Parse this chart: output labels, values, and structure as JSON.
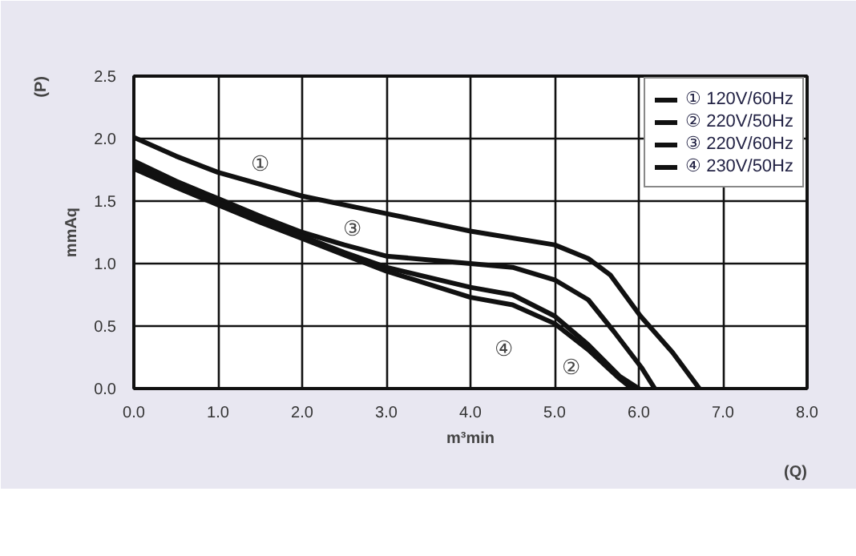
{
  "chart_data": {
    "type": "line",
    "xlabel": "m³min",
    "ylabel": "mmAq",
    "xlim": [
      0,
      8
    ],
    "ylim": [
      0,
      2.5
    ],
    "xticks": [
      {
        "value": 0,
        "label": "0.0"
      },
      {
        "value": 1,
        "label": "1.0"
      },
      {
        "value": 2,
        "label": "2.0"
      },
      {
        "value": 3,
        "label": "3.0"
      },
      {
        "value": 4,
        "label": "4.0"
      },
      {
        "value": 5,
        "label": "5.0"
      },
      {
        "value": 6,
        "label": "6.0"
      },
      {
        "value": 7,
        "label": "7.0"
      },
      {
        "value": 8,
        "label": "8.0"
      }
    ],
    "yticks": [
      {
        "value": 0,
        "label": "0.0"
      },
      {
        "value": 0.5,
        "label": "0.5"
      },
      {
        "value": 1,
        "label": "1.0"
      },
      {
        "value": 1.5,
        "label": "1.5"
      },
      {
        "value": 2,
        "label": "2.0"
      },
      {
        "value": 2.5,
        "label": "2.5"
      }
    ],
    "grid": true,
    "legend": "top right",
    "line_style": "solid",
    "series": [
      {
        "name": "① 120V/60Hz",
        "color": "#111111",
        "x": [
          0,
          0.5,
          1,
          2,
          3,
          4,
          5,
          5.4,
          5.66,
          6.02,
          6.4,
          6.72
        ],
        "values": [
          2.01,
          1.86,
          1.73,
          1.54,
          1.4,
          1.26,
          1.15,
          1.04,
          0.91,
          0.58,
          0.29,
          0
        ]
      },
      {
        "name": "② 220V/50Hz",
        "color": "#111111",
        "x": [
          0,
          0.5,
          1,
          1.5,
          2,
          2.5,
          3,
          4,
          4.5,
          5,
          5.4,
          5.77,
          5.92
        ],
        "values": [
          1.76,
          1.61,
          1.47,
          1.33,
          1.2,
          1.07,
          0.94,
          0.73,
          0.67,
          0.52,
          0.31,
          0.08,
          0
        ]
      },
      {
        "name": "③ 220V/60Hz",
        "color": "#111111",
        "x": [
          0,
          0.5,
          1,
          1.5,
          2,
          2.5,
          3,
          4,
          4.5,
          5,
          5.4,
          5.7,
          6.03,
          6.19
        ],
        "values": [
          1.82,
          1.66,
          1.52,
          1.38,
          1.25,
          1.15,
          1.06,
          1.0,
          0.97,
          0.87,
          0.71,
          0.46,
          0.17,
          0
        ]
      },
      {
        "name": "④ 230V/50Hz",
        "color": "#111111",
        "x": [
          0,
          0.5,
          1,
          1.5,
          2,
          2.5,
          3,
          4,
          4.5,
          5,
          5.4,
          5.77,
          6.0
        ],
        "values": [
          1.79,
          1.63,
          1.49,
          1.35,
          1.22,
          1.09,
          0.97,
          0.81,
          0.75,
          0.58,
          0.35,
          0.1,
          0
        ]
      }
    ],
    "annotations": [
      {
        "text": "①",
        "x": 1.5,
        "y": 1.8
      },
      {
        "text": "③",
        "x": 2.6,
        "y": 1.28
      },
      {
        "text": "④",
        "x": 4.4,
        "y": 0.32
      },
      {
        "text": "②",
        "x": 5.2,
        "y": 0.17
      },
      "(P)",
      "(Q)"
    ]
  }
}
